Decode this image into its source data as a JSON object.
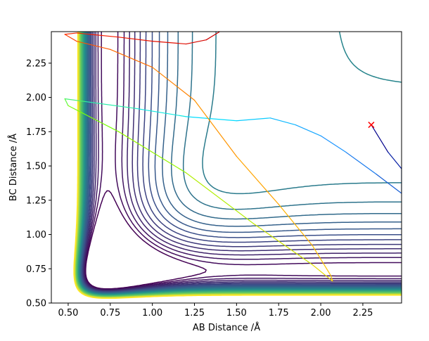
{
  "chart_data": {
    "type": "contour",
    "title": "",
    "xlabel": "AB Distance /Å",
    "ylabel": "BC Distance /Å",
    "xlim": [
      0.4,
      2.48
    ],
    "ylim": [
      0.5,
      2.48
    ],
    "xticks": [
      "0.50",
      "0.75",
      "1.00",
      "1.25",
      "1.50",
      "1.75",
      "2.00",
      "2.25"
    ],
    "xtick_values": [
      0.5,
      0.75,
      1.0,
      1.25,
      1.5,
      1.75,
      2.0,
      2.25
    ],
    "yticks": [
      "0.50",
      "0.75",
      "1.00",
      "1.25",
      "1.50",
      "1.75",
      "2.00",
      "2.25"
    ],
    "ytick_values": [
      0.5,
      0.75,
      1.0,
      1.25,
      1.5,
      1.75,
      2.0,
      2.25
    ],
    "colormap": [
      "#440154",
      "#3b528b",
      "#21918c",
      "#5ec962",
      "#fde725"
    ],
    "contour_count": 30,
    "potential": {
      "D": 1.0,
      "beta": 5.0,
      "re": 0.74
    },
    "trajectory": {
      "color_gradient": [
        "#00008b",
        "#1e90ff",
        "#00e5ff",
        "#7fff00",
        "#ffd400",
        "#ff8c00",
        "#ff2200",
        "#cc0000"
      ],
      "points": [
        [
          2.3,
          1.8
        ],
        [
          2.4,
          1.6
        ],
        [
          2.48,
          1.48
        ],
        [
          2.48,
          1.3
        ],
        [
          2.33,
          1.44
        ],
        [
          2.15,
          1.6
        ],
        [
          2.0,
          1.72
        ],
        [
          1.85,
          1.8
        ],
        [
          1.7,
          1.85
        ],
        [
          1.5,
          1.83
        ],
        [
          1.2,
          1.86
        ],
        [
          0.9,
          1.92
        ],
        [
          0.6,
          1.97
        ],
        [
          0.48,
          1.99
        ],
        [
          0.5,
          1.94
        ],
        [
          0.8,
          1.75
        ],
        [
          1.2,
          1.45
        ],
        [
          1.6,
          1.08
        ],
        [
          1.95,
          0.78
        ],
        [
          2.07,
          0.66
        ],
        [
          2.06,
          0.7
        ],
        [
          1.95,
          0.92
        ],
        [
          1.75,
          1.22
        ],
        [
          1.5,
          1.57
        ],
        [
          1.25,
          1.98
        ],
        [
          1.0,
          2.22
        ],
        [
          0.75,
          2.35
        ],
        [
          0.55,
          2.41
        ],
        [
          0.48,
          2.46
        ],
        [
          0.55,
          2.47
        ],
        [
          0.8,
          2.44
        ],
        [
          1.0,
          2.41
        ],
        [
          1.2,
          2.39
        ],
        [
          1.32,
          2.42
        ],
        [
          1.4,
          2.48
        ]
      ]
    },
    "start_marker": {
      "x": 2.3,
      "y": 1.8,
      "symbol": "x",
      "color": "#ff0000"
    }
  }
}
